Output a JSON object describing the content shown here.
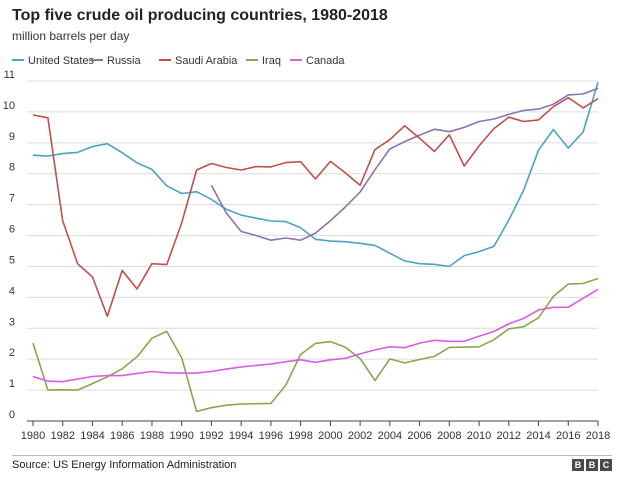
{
  "title": "Top five crude oil producing countries, 1980-2018",
  "subtitle": "million barrels per day",
  "source": "Source: US Energy Information Administration",
  "logo": [
    "B",
    "B",
    "C"
  ],
  "chart_data": {
    "type": "line",
    "title": "Top five crude oil producing countries, 1980-2018",
    "ylabel": "million barrels per day",
    "xlim": [
      1980,
      2018
    ],
    "ylim": [
      0,
      11
    ],
    "yticks": [
      0,
      1,
      2,
      3,
      4,
      5,
      6,
      7,
      8,
      9,
      10,
      11
    ],
    "xticks": [
      1980,
      1982,
      1984,
      1986,
      1988,
      1990,
      1992,
      1994,
      1996,
      1998,
      2000,
      2002,
      2004,
      2006,
      2008,
      2010,
      2012,
      2014,
      2016,
      2018
    ],
    "grid": true,
    "legend": "top",
    "series": [
      {
        "name": "United States",
        "color": "#4ba3c3",
        "x": [
          1980,
          1981,
          1982,
          1983,
          1984,
          1985,
          1986,
          1987,
          1988,
          1989,
          1990,
          1991,
          1992,
          1993,
          1994,
          1995,
          1996,
          1997,
          1998,
          1999,
          2000,
          2001,
          2002,
          2003,
          2004,
          2005,
          2006,
          2007,
          2008,
          2009,
          2010,
          2011,
          2012,
          2013,
          2014,
          2015,
          2016,
          2017,
          2018
        ],
        "y": [
          8.6,
          8.57,
          8.65,
          8.69,
          8.88,
          8.97,
          8.68,
          8.35,
          8.14,
          7.61,
          7.36,
          7.42,
          7.17,
          6.85,
          6.66,
          6.56,
          6.47,
          6.45,
          6.25,
          5.88,
          5.82,
          5.8,
          5.75,
          5.68,
          5.43,
          5.18,
          5.09,
          5.07,
          5.0,
          5.35,
          5.48,
          5.65,
          6.5,
          7.47,
          8.76,
          9.43,
          8.83,
          9.35,
          10.96
        ]
      },
      {
        "name": "Russia",
        "color": "#8b73b3",
        "x": [
          1992,
          1993,
          1994,
          1995,
          1996,
          1997,
          1998,
          1999,
          2000,
          2001,
          2002,
          2003,
          2004,
          2005,
          2006,
          2007,
          2008,
          2009,
          2010,
          2011,
          2012,
          2013,
          2014,
          2015,
          2016,
          2017,
          2018
        ],
        "y": [
          7.63,
          6.73,
          6.13,
          6.0,
          5.85,
          5.92,
          5.85,
          6.08,
          6.48,
          6.92,
          7.41,
          8.13,
          8.8,
          9.04,
          9.25,
          9.44,
          9.36,
          9.5,
          9.69,
          9.77,
          9.92,
          10.05,
          10.09,
          10.25,
          10.55,
          10.58,
          10.76
        ]
      },
      {
        "name": "Saudi Arabia",
        "color": "#c0504d",
        "x": [
          1980,
          1981,
          1982,
          1983,
          1984,
          1985,
          1986,
          1987,
          1988,
          1989,
          1990,
          1991,
          1992,
          1993,
          1994,
          1995,
          1996,
          1997,
          1998,
          1999,
          2000,
          2001,
          2002,
          2003,
          2004,
          2005,
          2006,
          2007,
          2008,
          2009,
          2010,
          2011,
          2012,
          2013,
          2014,
          2015,
          2016,
          2017,
          2018
        ],
        "y": [
          9.9,
          9.81,
          6.48,
          5.09,
          4.66,
          3.39,
          4.87,
          4.27,
          5.09,
          5.06,
          6.41,
          8.12,
          8.33,
          8.2,
          8.12,
          8.23,
          8.22,
          8.36,
          8.39,
          7.83,
          8.4,
          8.03,
          7.63,
          8.78,
          9.1,
          9.55,
          9.15,
          8.72,
          9.26,
          8.25,
          8.9,
          9.46,
          9.83,
          9.69,
          9.74,
          10.17,
          10.46,
          10.13,
          10.43
        ]
      },
      {
        "name": "Iraq",
        "color": "#8aa64e",
        "x": [
          1980,
          1981,
          1982,
          1983,
          1984,
          1985,
          1986,
          1987,
          1988,
          1989,
          1990,
          1991,
          1992,
          1993,
          1994,
          1995,
          1996,
          1997,
          1998,
          1999,
          2000,
          2001,
          2002,
          2003,
          2004,
          2005,
          2006,
          2007,
          2008,
          2009,
          2010,
          2011,
          2012,
          2013,
          2014,
          2015,
          2016,
          2017,
          2018
        ],
        "y": [
          2.52,
          1.0,
          1.01,
          1.0,
          1.21,
          1.43,
          1.69,
          2.08,
          2.68,
          2.9,
          2.04,
          0.31,
          0.43,
          0.51,
          0.55,
          0.56,
          0.57,
          1.16,
          2.15,
          2.51,
          2.57,
          2.39,
          2.02,
          1.31,
          2.01,
          1.88,
          1.99,
          2.09,
          2.38,
          2.39,
          2.4,
          2.63,
          2.98,
          3.05,
          3.34,
          4.03,
          4.43,
          4.45,
          4.61
        ]
      },
      {
        "name": "Canada",
        "color": "#d65fe0",
        "x": [
          1980,
          1981,
          1982,
          1983,
          1984,
          1985,
          1986,
          1987,
          1988,
          1989,
          1990,
          1991,
          1992,
          1993,
          1994,
          1995,
          1996,
          1997,
          1998,
          1999,
          2000,
          2001,
          2002,
          2003,
          2004,
          2005,
          2006,
          2007,
          2008,
          2009,
          2010,
          2011,
          2012,
          2013,
          2014,
          2015,
          2016,
          2017,
          2018
        ],
        "y": [
          1.44,
          1.29,
          1.27,
          1.36,
          1.44,
          1.47,
          1.47,
          1.54,
          1.6,
          1.56,
          1.55,
          1.55,
          1.6,
          1.68,
          1.75,
          1.8,
          1.84,
          1.92,
          1.98,
          1.9,
          1.98,
          2.03,
          2.17,
          2.3,
          2.4,
          2.37,
          2.52,
          2.61,
          2.58,
          2.58,
          2.74,
          2.9,
          3.14,
          3.32,
          3.59,
          3.68,
          3.68,
          3.97,
          4.26
        ]
      }
    ]
  }
}
